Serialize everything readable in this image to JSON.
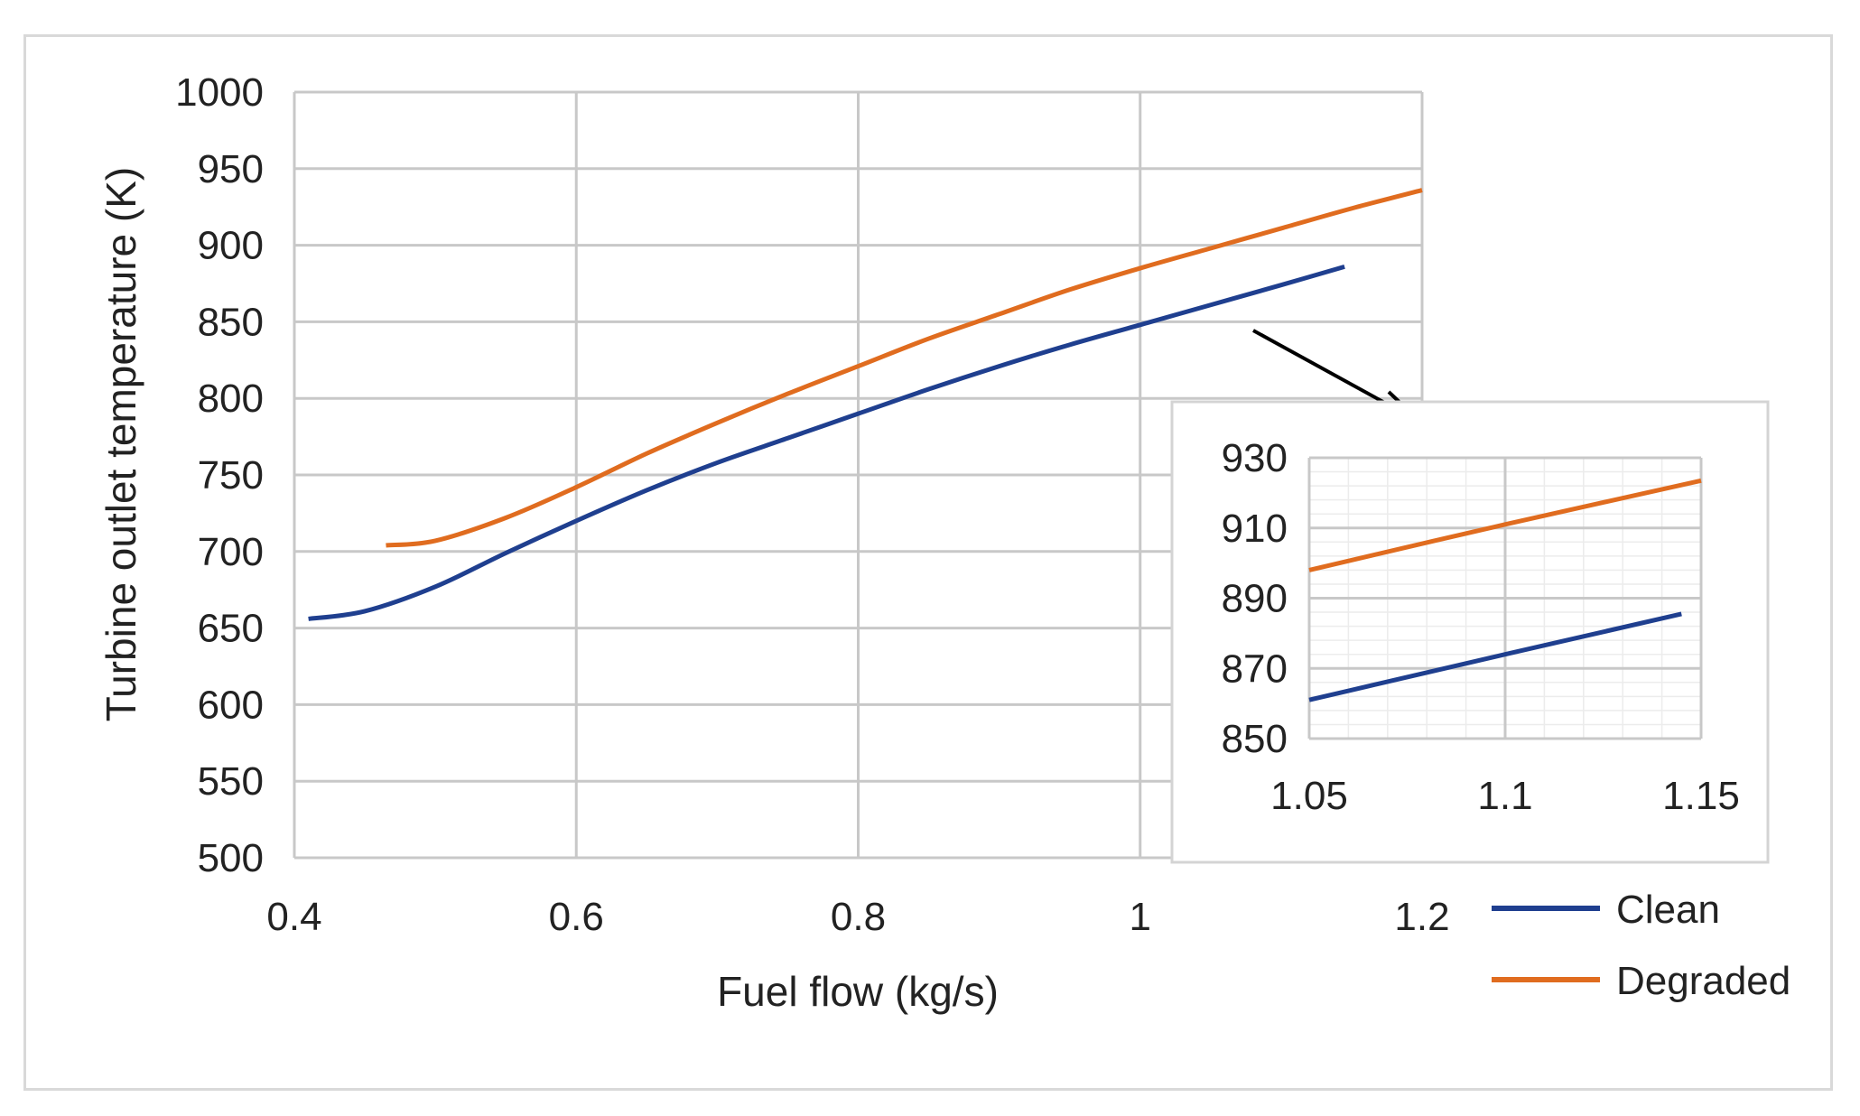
{
  "chart_data": [
    {
      "id": "main",
      "type": "line",
      "title": "",
      "xlabel": "Fuel flow (kg/s)",
      "ylabel": "Turbine outlet temperature (K)",
      "xlim": [
        0.4,
        1.2
      ],
      "ylim": [
        500,
        1000
      ],
      "xticks": [
        0.4,
        0.6,
        0.8,
        1.0,
        1.2
      ],
      "xtick_labels": [
        "0.4",
        "0.6",
        "0.8",
        "1",
        "1.2"
      ],
      "yticks": [
        500,
        550,
        600,
        650,
        700,
        750,
        800,
        850,
        900,
        950,
        1000
      ],
      "ytick_labels": [
        "500",
        "550",
        "600",
        "650",
        "700",
        "750",
        "800",
        "850",
        "900",
        "950",
        "1000"
      ],
      "grid": true,
      "series": [
        {
          "name": "Clean",
          "color": "#1f3f8f",
          "x": [
            0.41,
            0.45,
            0.5,
            0.55,
            0.6,
            0.65,
            0.7,
            0.75,
            0.8,
            0.85,
            0.9,
            0.95,
            1.0,
            1.05,
            1.1,
            1.145
          ],
          "y": [
            656,
            661,
            677,
            699,
            720,
            740,
            758,
            774,
            790,
            806,
            821,
            835,
            848,
            861,
            874,
            886
          ]
        },
        {
          "name": "Degraded",
          "color": "#e06c1f",
          "x": [
            0.465,
            0.5,
            0.55,
            0.6,
            0.65,
            0.7,
            0.75,
            0.8,
            0.85,
            0.9,
            0.95,
            1.0,
            1.05,
            1.1,
            1.15,
            1.2
          ],
          "y": [
            704,
            707,
            722,
            742,
            764,
            784,
            803,
            821,
            839,
            855,
            871,
            885,
            898,
            911,
            924,
            936
          ]
        }
      ]
    },
    {
      "id": "inset",
      "type": "line",
      "title": "",
      "xlabel": "",
      "ylabel": "",
      "xlim": [
        1.05,
        1.15
      ],
      "ylim": [
        850,
        930
      ],
      "xticks": [
        1.05,
        1.1,
        1.15
      ],
      "xtick_labels": [
        "1.05",
        "1.1",
        "1.15"
      ],
      "yticks": [
        850,
        870,
        890,
        910,
        930
      ],
      "ytick_labels": [
        "850",
        "870",
        "890",
        "910",
        "930"
      ],
      "grid": true,
      "series": [
        {
          "name": "Clean",
          "color": "#1f3f8f",
          "x": [
            1.05,
            1.1,
            1.145
          ],
          "y": [
            861,
            874,
            885.5
          ]
        },
        {
          "name": "Degraded",
          "color": "#e06c1f",
          "x": [
            1.05,
            1.1,
            1.15
          ],
          "y": [
            898,
            911,
            923.5
          ]
        }
      ]
    }
  ],
  "legend": [
    {
      "label": "Clean",
      "color": "#1f3f8f"
    },
    {
      "label": "Degraded",
      "color": "#e06c1f"
    }
  ]
}
